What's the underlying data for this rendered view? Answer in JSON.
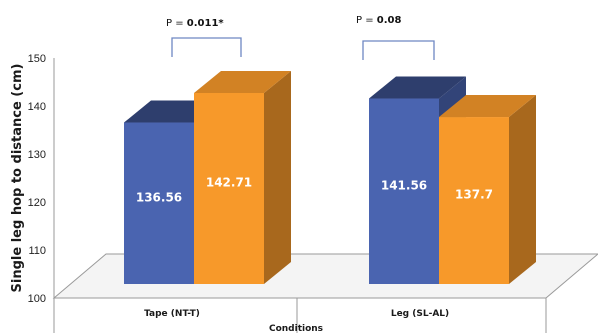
{
  "chart_data": {
    "type": "bar",
    "title": "",
    "xlabel": "Conditions",
    "ylabel": "Single leg hop to distance (cm)",
    "ylim": [
      100,
      150
    ],
    "yticks": [
      "100",
      "110",
      "120",
      "130",
      "140",
      "150"
    ],
    "grid": false,
    "legend": "none",
    "categories": [
      "Tape (NT-T)",
      "Leg (SL-AL)"
    ],
    "series": [
      {
        "color": "#4a64b0",
        "values": [
          136.56,
          141.56
        ]
      },
      {
        "color": "#f7992a",
        "values": [
          142.71,
          137.7
        ]
      }
    ],
    "data_labels": [
      [
        "136.56",
        "142.71"
      ],
      [
        "141.56",
        "137.7"
      ]
    ],
    "annotations": [
      {
        "label": "P = ",
        "value": "0.011*"
      },
      {
        "label": "P = ",
        "value": "0.08"
      }
    ]
  }
}
